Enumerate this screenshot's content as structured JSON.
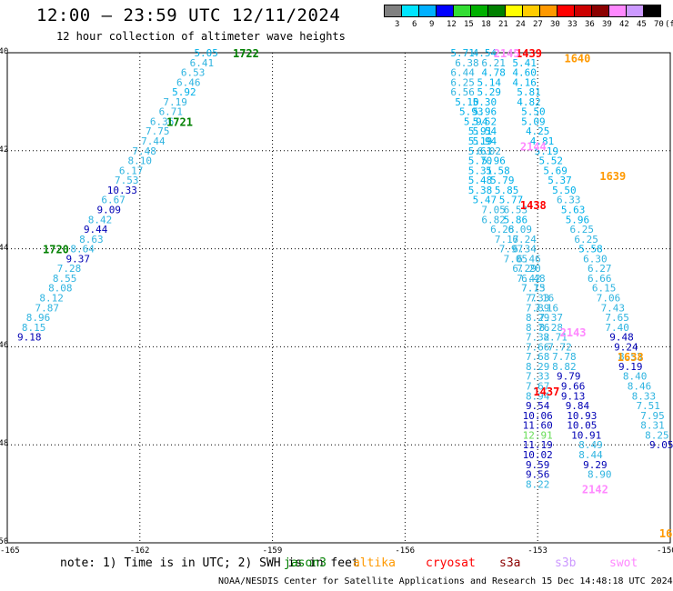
{
  "header": {
    "title": "12:00 – 23:59 UTC 12/11/2024",
    "subtitle": "12 hour collection of altimeter wave heights"
  },
  "colorbar": {
    "unit": "(ft)",
    "labels": [
      "3",
      "6",
      "9",
      "12",
      "15",
      "18",
      "21",
      "24",
      "27",
      "30",
      "33",
      "36",
      "39",
      "42",
      "45",
      "70"
    ],
    "colors": [
      "#808080",
      "#00e5ff",
      "#00b0ff",
      "#0000ff",
      "#33dd33",
      "#00b000",
      "#008000",
      "#ffff00",
      "#ffcc00",
      "#ff9900",
      "#ff0000",
      "#cc0000",
      "#8b0000",
      "#ff88ff",
      "#cc99ff",
      "#000000"
    ]
  },
  "footer": {
    "note": "note:  1) Time is in UTC; 2) SWH is in feet",
    "satellites": [
      {
        "name": "jason3",
        "color": "#008000"
      },
      {
        "name": "altika",
        "color": "#ff9900"
      },
      {
        "name": "cryosat",
        "color": "#ff0000"
      },
      {
        "name": "s3a",
        "color": "#8b0000"
      },
      {
        "name": "s3b",
        "color": "#cc99ff"
      },
      {
        "name": "swot",
        "color": "#ff88ff"
      }
    ],
    "credit": "NOAA/NESDIS Center for Satellite Applications and Research   15 Dec 14:48:18 UTC 2024"
  },
  "chart_data": {
    "type": "scatter",
    "xlim": [
      -165,
      -150
    ],
    "ylim": [
      -50,
      -40
    ],
    "x_ticks": [
      "-165",
      "-162",
      "-159",
      "-156",
      "-153",
      "-150"
    ],
    "y_ticks": [
      "-40",
      "-42",
      "-44",
      "-46",
      "-48",
      "-50"
    ],
    "grid": true,
    "value_colors": {
      "lt6": "#00b0e8",
      "lt9": "#2fb4e0",
      "lt12": "#0000b4",
      "ge12": "#66dd55"
    },
    "time_labels": [
      {
        "text": "1722",
        "lon": -159.6,
        "lat": -40.0,
        "color": "#008000"
      },
      {
        "text": "1721",
        "lon": -161.1,
        "lat": -41.4,
        "color": "#008000"
      },
      {
        "text": "1720",
        "lon": -163.9,
        "lat": -44.0,
        "color": "#008000"
      },
      {
        "text": "1439",
        "lon": -153.2,
        "lat": -40.0,
        "color": "#ff0000"
      },
      {
        "text": "1438",
        "lon": -153.1,
        "lat": -43.1,
        "color": "#ff0000"
      },
      {
        "text": "1437",
        "lon": -152.8,
        "lat": -46.9,
        "color": "#ff0000"
      },
      {
        "text": "1640",
        "lon": -152.1,
        "lat": -40.1,
        "color": "#ff9900"
      },
      {
        "text": "1639",
        "lon": -151.3,
        "lat": -42.5,
        "color": "#ff9900"
      },
      {
        "text": "1638",
        "lon": -150.9,
        "lat": -46.2,
        "color": "#ff9900"
      },
      {
        "text": "2145",
        "lon": -153.7,
        "lat": -40.0,
        "color": "#ff88ff"
      },
      {
        "text": "2144",
        "lon": -153.1,
        "lat": -41.9,
        "color": "#ff88ff"
      },
      {
        "text": "2143",
        "lon": -152.2,
        "lat": -45.7,
        "color": "#ff88ff"
      },
      {
        "text": "2142",
        "lon": -151.7,
        "lat": -48.9,
        "color": "#ff88ff"
      },
      {
        "text": "16",
        "lon": -150.1,
        "lat": -49.8,
        "color": "#ff9900"
      }
    ],
    "series": [
      {
        "name": "jason3",
        "points": [
          {
            "lon": -160.5,
            "lat": -40.0,
            "v": "5.05"
          },
          {
            "lon": -160.6,
            "lat": -40.2,
            "v": "6.41"
          },
          {
            "lon": -160.8,
            "lat": -40.4,
            "v": "6.53"
          },
          {
            "lon": -160.9,
            "lat": -40.6,
            "v": "6.46"
          },
          {
            "lon": -161.0,
            "lat": -40.8,
            "v": "5.92"
          },
          {
            "lon": -161.2,
            "lat": -41.0,
            "v": "7.19"
          },
          {
            "lon": -161.3,
            "lat": -41.2,
            "v": "6.71"
          },
          {
            "lon": -161.5,
            "lat": -41.4,
            "v": "6.36"
          },
          {
            "lon": -161.6,
            "lat": -41.6,
            "v": "7.75"
          },
          {
            "lon": -161.7,
            "lat": -41.8,
            "v": "7.44"
          },
          {
            "lon": -161.9,
            "lat": -42.0,
            "v": "7.48"
          },
          {
            "lon": -162.0,
            "lat": -42.2,
            "v": "8.10"
          },
          {
            "lon": -162.2,
            "lat": -42.4,
            "v": "6.17"
          },
          {
            "lon": -162.3,
            "lat": -42.6,
            "v": "7.53"
          },
          {
            "lon": -162.4,
            "lat": -42.8,
            "v": "10.33"
          },
          {
            "lon": -162.6,
            "lat": -43.0,
            "v": "6.67"
          },
          {
            "lon": -162.7,
            "lat": -43.2,
            "v": "9.09"
          },
          {
            "lon": -162.9,
            "lat": -43.4,
            "v": "8.42"
          },
          {
            "lon": -163.0,
            "lat": -43.6,
            "v": "9.44"
          },
          {
            "lon": -163.1,
            "lat": -43.8,
            "v": "8.63"
          },
          {
            "lon": -163.3,
            "lat": -44.0,
            "v": "8.64"
          },
          {
            "lon": -163.4,
            "lat": -44.2,
            "v": "9.37"
          },
          {
            "lon": -163.6,
            "lat": -44.4,
            "v": "7.28"
          },
          {
            "lon": -163.7,
            "lat": -44.6,
            "v": "8.55"
          },
          {
            "lon": -163.8,
            "lat": -44.8,
            "v": "8.08"
          },
          {
            "lon": -164.0,
            "lat": -45.0,
            "v": "8.12"
          },
          {
            "lon": -164.1,
            "lat": -45.2,
            "v": "7.87"
          },
          {
            "lon": -164.3,
            "lat": -45.4,
            "v": "8.96"
          },
          {
            "lon": -164.4,
            "lat": -45.6,
            "v": "8.15"
          },
          {
            "lon": -164.5,
            "lat": -45.8,
            "v": "9.18"
          }
        ]
      },
      {
        "name": "cryosat",
        "points": [
          {
            "lon": -154.7,
            "lat": -40.0,
            "v": "5.71"
          },
          {
            "lon": -154.2,
            "lat": -40.0,
            "v": "4.54"
          },
          {
            "lon": -154.0,
            "lat": -40.2,
            "v": "6.21"
          },
          {
            "lon": -154.0,
            "lat": -40.4,
            "v": "4.78"
          },
          {
            "lon": -154.1,
            "lat": -40.6,
            "v": "5.14"
          },
          {
            "lon": -154.1,
            "lat": -40.8,
            "v": "5.29"
          },
          {
            "lon": -154.2,
            "lat": -41.0,
            "v": "5.30"
          },
          {
            "lon": -154.2,
            "lat": -41.2,
            "v": "5.96"
          },
          {
            "lon": -154.2,
            "lat": -41.4,
            "v": "5.52"
          },
          {
            "lon": -154.2,
            "lat": -41.6,
            "v": "5.54"
          },
          {
            "lon": -154.3,
            "lat": -41.8,
            "v": "5.19"
          },
          {
            "lon": -154.3,
            "lat": -42.0,
            "v": "5.61"
          },
          {
            "lon": -154.3,
            "lat": -42.2,
            "v": "5.70"
          },
          {
            "lon": -154.3,
            "lat": -42.4,
            "v": "5.31"
          },
          {
            "lon": -154.3,
            "lat": -42.6,
            "v": "5.48"
          },
          {
            "lon": -154.3,
            "lat": -42.8,
            "v": "5.38"
          },
          {
            "lon": -154.2,
            "lat": -43.0,
            "v": "5.47"
          },
          {
            "lon": -154.0,
            "lat": -43.2,
            "v": "7.05"
          },
          {
            "lon": -154.0,
            "lat": -43.4,
            "v": "6.82"
          },
          {
            "lon": -153.8,
            "lat": -43.6,
            "v": "6.28"
          },
          {
            "lon": -153.7,
            "lat": -43.8,
            "v": "7.17"
          },
          {
            "lon": -153.6,
            "lat": -44.0,
            "v": "7.97"
          },
          {
            "lon": -153.5,
            "lat": -44.2,
            "v": "7.05"
          },
          {
            "lon": -153.3,
            "lat": -44.4,
            "v": "6.29"
          },
          {
            "lon": -153.2,
            "lat": -44.6,
            "v": "7.42"
          },
          {
            "lon": -153.1,
            "lat": -44.8,
            "v": "7.75"
          },
          {
            "lon": -152.9,
            "lat": -45.0,
            "v": "7.16"
          },
          {
            "lon": -152.8,
            "lat": -45.2,
            "v": "7.16"
          },
          {
            "lon": -152.7,
            "lat": -45.4,
            "v": "7.37"
          },
          {
            "lon": -152.7,
            "lat": -45.6,
            "v": "8.28"
          },
          {
            "lon": -152.6,
            "lat": -45.8,
            "v": "8.71"
          },
          {
            "lon": -152.5,
            "lat": -46.0,
            "v": "7.72"
          },
          {
            "lon": -152.4,
            "lat": -46.2,
            "v": "7.78"
          },
          {
            "lon": -152.4,
            "lat": -46.4,
            "v": "8.82"
          },
          {
            "lon": -152.3,
            "lat": -46.6,
            "v": "9.79"
          },
          {
            "lon": -152.2,
            "lat": -46.8,
            "v": "9.66"
          },
          {
            "lon": -152.2,
            "lat": -47.0,
            "v": "9.13"
          },
          {
            "lon": -152.1,
            "lat": -47.2,
            "v": "9.84"
          },
          {
            "lon": -152.0,
            "lat": -47.4,
            "v": "10.93"
          },
          {
            "lon": -152.0,
            "lat": -47.6,
            "v": "10.05"
          },
          {
            "lon": -151.9,
            "lat": -47.8,
            "v": "10.91"
          },
          {
            "lon": -151.8,
            "lat": -48.0,
            "v": "8.49"
          },
          {
            "lon": -151.8,
            "lat": -48.2,
            "v": "8.44"
          },
          {
            "lon": -151.7,
            "lat": -48.4,
            "v": "9.29"
          },
          {
            "lon": -151.6,
            "lat": -48.6,
            "v": "8.90"
          }
        ]
      },
      {
        "name": "s3a",
        "points": [
          {
            "lon": -154.6,
            "lat": -40.2,
            "v": "6.38"
          },
          {
            "lon": -154.7,
            "lat": -40.4,
            "v": "6.44"
          },
          {
            "lon": -154.7,
            "lat": -40.6,
            "v": "6.25"
          },
          {
            "lon": -154.7,
            "lat": -40.8,
            "v": "6.56"
          },
          {
            "lon": -154.6,
            "lat": -41.0,
            "v": "5.10"
          },
          {
            "lon": -154.5,
            "lat": -41.2,
            "v": "5.93"
          },
          {
            "lon": -154.4,
            "lat": -41.4,
            "v": "5.94"
          },
          {
            "lon": -154.3,
            "lat": -41.6,
            "v": "5.91"
          },
          {
            "lon": -154.2,
            "lat": -41.8,
            "v": "5.94"
          },
          {
            "lon": -154.1,
            "lat": -42.0,
            "v": "6.02"
          },
          {
            "lon": -154.0,
            "lat": -42.2,
            "v": "5.96"
          },
          {
            "lon": -153.9,
            "lat": -42.4,
            "v": "5.58"
          },
          {
            "lon": -153.8,
            "lat": -42.6,
            "v": "5.79"
          },
          {
            "lon": -153.7,
            "lat": -42.8,
            "v": "5.85"
          },
          {
            "lon": -153.6,
            "lat": -43.0,
            "v": "5.77"
          },
          {
            "lon": -153.5,
            "lat": -43.2,
            "v": "6.53"
          },
          {
            "lon": -153.5,
            "lat": -43.4,
            "v": "5.86"
          },
          {
            "lon": -153.4,
            "lat": -43.6,
            "v": "6.09"
          },
          {
            "lon": -153.3,
            "lat": -43.8,
            "v": "6.24"
          },
          {
            "lon": -153.3,
            "lat": -44.0,
            "v": "6.34"
          },
          {
            "lon": -153.2,
            "lat": -44.2,
            "v": "6.46"
          },
          {
            "lon": -153.2,
            "lat": -44.4,
            "v": "7.20"
          },
          {
            "lon": -153.1,
            "lat": -44.6,
            "v": "6.48"
          },
          {
            "lon": -153.1,
            "lat": -44.8,
            "v": "7.13"
          },
          {
            "lon": -153.0,
            "lat": -45.0,
            "v": "7.33"
          },
          {
            "lon": -153.0,
            "lat": -45.2,
            "v": "7.89"
          },
          {
            "lon": -153.0,
            "lat": -45.4,
            "v": "8.29"
          },
          {
            "lon": -153.0,
            "lat": -45.6,
            "v": "8.76"
          },
          {
            "lon": -153.0,
            "lat": -45.8,
            "v": "7.32"
          },
          {
            "lon": -153.0,
            "lat": -46.0,
            "v": "7.66"
          },
          {
            "lon": -153.0,
            "lat": -46.2,
            "v": "7.68"
          },
          {
            "lon": -153.0,
            "lat": -46.4,
            "v": "8.29"
          },
          {
            "lon": -153.0,
            "lat": -46.6,
            "v": "7.33"
          },
          {
            "lon": -153.0,
            "lat": -46.8,
            "v": "7.67"
          },
          {
            "lon": -153.0,
            "lat": -47.0,
            "v": "8.94"
          },
          {
            "lon": -153.0,
            "lat": -47.2,
            "v": "9.54"
          },
          {
            "lon": -153.0,
            "lat": -47.4,
            "v": "10.06"
          },
          {
            "lon": -153.0,
            "lat": -47.6,
            "v": "11.60"
          },
          {
            "lon": -153.0,
            "lat": -47.8,
            "v": "12.91"
          },
          {
            "lon": -153.0,
            "lat": -48.0,
            "v": "11.19"
          },
          {
            "lon": -153.0,
            "lat": -48.2,
            "v": "10.02"
          },
          {
            "lon": -153.0,
            "lat": -48.4,
            "v": "9.59"
          },
          {
            "lon": -153.0,
            "lat": -48.6,
            "v": "9.56"
          },
          {
            "lon": -153.0,
            "lat": -48.8,
            "v": "8.22"
          }
        ]
      },
      {
        "name": "altika",
        "points": [
          {
            "lon": -153.3,
            "lat": -40.2,
            "v": "5.41"
          },
          {
            "lon": -153.3,
            "lat": -40.4,
            "v": "4.60"
          },
          {
            "lon": -153.3,
            "lat": -40.6,
            "v": "4.16"
          },
          {
            "lon": -153.2,
            "lat": -40.8,
            "v": "5.81"
          },
          {
            "lon": -153.2,
            "lat": -41.0,
            "v": "4.82"
          },
          {
            "lon": -153.1,
            "lat": -41.2,
            "v": "5.50"
          },
          {
            "lon": -153.1,
            "lat": -41.4,
            "v": "5.09"
          },
          {
            "lon": -153.0,
            "lat": -41.6,
            "v": "4.25"
          },
          {
            "lon": -152.9,
            "lat": -41.8,
            "v": "4.81"
          },
          {
            "lon": -152.8,
            "lat": -42.0,
            "v": "5.19"
          },
          {
            "lon": -152.7,
            "lat": -42.2,
            "v": "5.52"
          },
          {
            "lon": -152.6,
            "lat": -42.4,
            "v": "5.69"
          },
          {
            "lon": -152.5,
            "lat": -42.6,
            "v": "5.37"
          },
          {
            "lon": -152.4,
            "lat": -42.8,
            "v": "5.50"
          },
          {
            "lon": -152.3,
            "lat": -43.0,
            "v": "6.33"
          },
          {
            "lon": -152.2,
            "lat": -43.2,
            "v": "5.63"
          },
          {
            "lon": -152.1,
            "lat": -43.4,
            "v": "5.96"
          },
          {
            "lon": -152.0,
            "lat": -43.6,
            "v": "6.25"
          },
          {
            "lon": -151.9,
            "lat": -43.8,
            "v": "6.25"
          },
          {
            "lon": -151.8,
            "lat": -44.0,
            "v": "5.58"
          },
          {
            "lon": -151.7,
            "lat": -44.2,
            "v": "6.30"
          },
          {
            "lon": -151.6,
            "lat": -44.4,
            "v": "6.27"
          },
          {
            "lon": -151.6,
            "lat": -44.6,
            "v": "6.66"
          },
          {
            "lon": -151.5,
            "lat": -44.8,
            "v": "6.15"
          },
          {
            "lon": -151.4,
            "lat": -45.0,
            "v": "7.06"
          },
          {
            "lon": -151.3,
            "lat": -45.2,
            "v": "7.43"
          },
          {
            "lon": -151.2,
            "lat": -45.4,
            "v": "7.65"
          },
          {
            "lon": -151.2,
            "lat": -45.6,
            "v": "7.40"
          },
          {
            "lon": -151.1,
            "lat": -45.8,
            "v": "9.48"
          },
          {
            "lon": -151.0,
            "lat": -46.0,
            "v": "9.24"
          },
          {
            "lon": -150.9,
            "lat": -46.2,
            "v": "8.53"
          },
          {
            "lon": -150.9,
            "lat": -46.4,
            "v": "9.19"
          },
          {
            "lon": -150.8,
            "lat": -46.6,
            "v": "8.40"
          },
          {
            "lon": -150.7,
            "lat": -46.8,
            "v": "8.46"
          },
          {
            "lon": -150.6,
            "lat": -47.0,
            "v": "8.33"
          },
          {
            "lon": -150.5,
            "lat": -47.2,
            "v": "7.51"
          },
          {
            "lon": -150.4,
            "lat": -47.4,
            "v": "7.95"
          },
          {
            "lon": -150.4,
            "lat": -47.6,
            "v": "8.31"
          },
          {
            "lon": -150.3,
            "lat": -47.8,
            "v": "8.25"
          },
          {
            "lon": -150.2,
            "lat": -48.0,
            "v": "9.05"
          }
        ]
      }
    ]
  }
}
